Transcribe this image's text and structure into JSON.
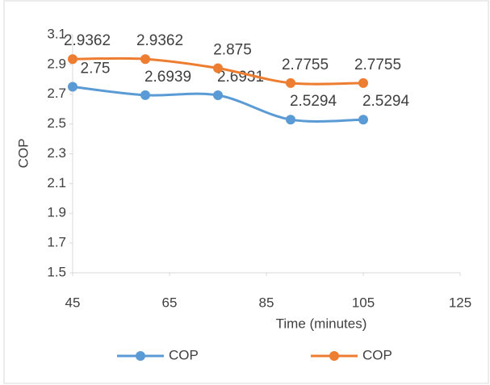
{
  "chart_data": {
    "type": "line",
    "x_label": "Time (minutes)",
    "y_label": "COP",
    "x": [
      45,
      60,
      75,
      90,
      105
    ],
    "series": [
      {
        "name": "COP",
        "color": "#5b9bd5",
        "values": [
          2.75,
          2.6939,
          2.6931,
          2.5294,
          2.5294
        ]
      },
      {
        "name": "COP",
        "color": "#ed7d31",
        "values": [
          2.9362,
          2.9362,
          2.875,
          2.7755,
          2.7755
        ]
      }
    ],
    "xlim": [
      45,
      125
    ],
    "xticks": [
      45,
      65,
      85,
      105,
      125
    ],
    "ylim": [
      1.5,
      3.1
    ],
    "yticks": [
      1.5,
      1.7,
      1.9,
      2.1,
      2.3,
      2.5,
      2.7,
      2.9,
      3.1
    ],
    "grid": false,
    "legend": "bottom"
  }
}
